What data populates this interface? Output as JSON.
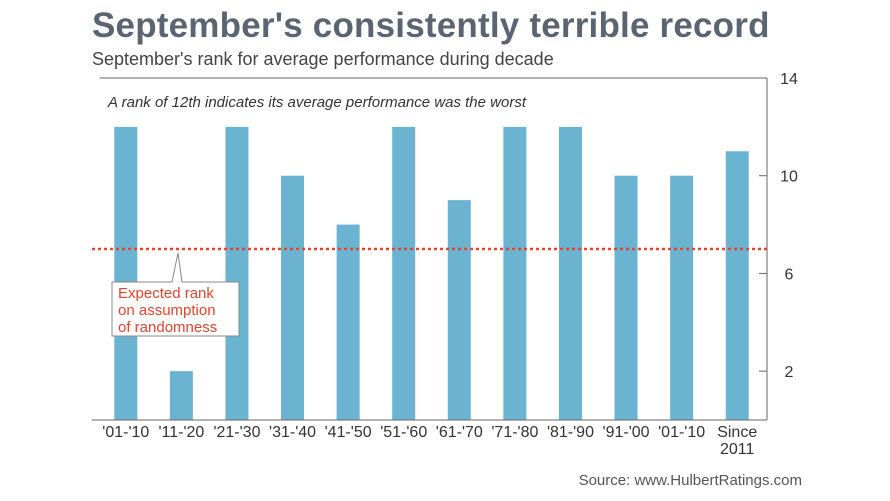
{
  "header": {
    "title": "September's consistently terrible record",
    "subtitle": "September's rank for average performance during decade"
  },
  "footer": {
    "source": "Source: www.HulbertRatings.com"
  },
  "colors": {
    "bar": "#6ab4d2",
    "reference_line": "#e8432d",
    "title": "#5b6571"
  },
  "chart_data": {
    "type": "bar",
    "title": "September's consistently terrible record",
    "subtitle": "September's rank for average performance during decade",
    "note": "A rank of 12th indicates its average performance was the worst",
    "categories": [
      [
        "'01-'10"
      ],
      [
        "'11-'20"
      ],
      [
        "'21-'30"
      ],
      [
        "'31-'40"
      ],
      [
        "'41-'50"
      ],
      [
        "'51-'60"
      ],
      [
        "'61-'70"
      ],
      [
        "'71-'80"
      ],
      [
        "'81-'90"
      ],
      [
        "'91-'00"
      ],
      [
        "'01-'10"
      ],
      [
        "Since",
        "2011"
      ]
    ],
    "values": [
      12,
      2,
      12,
      10,
      8,
      12,
      9,
      12,
      12,
      10,
      10,
      11
    ],
    "ylim": [
      0,
      14
    ],
    "yticks": [
      2,
      6,
      10,
      14
    ],
    "y_axis_side": "right",
    "reference_line": {
      "value": 7,
      "label": [
        "Expected rank",
        "on assumption",
        "of randomness"
      ]
    },
    "xlabel": "",
    "ylabel": ""
  }
}
